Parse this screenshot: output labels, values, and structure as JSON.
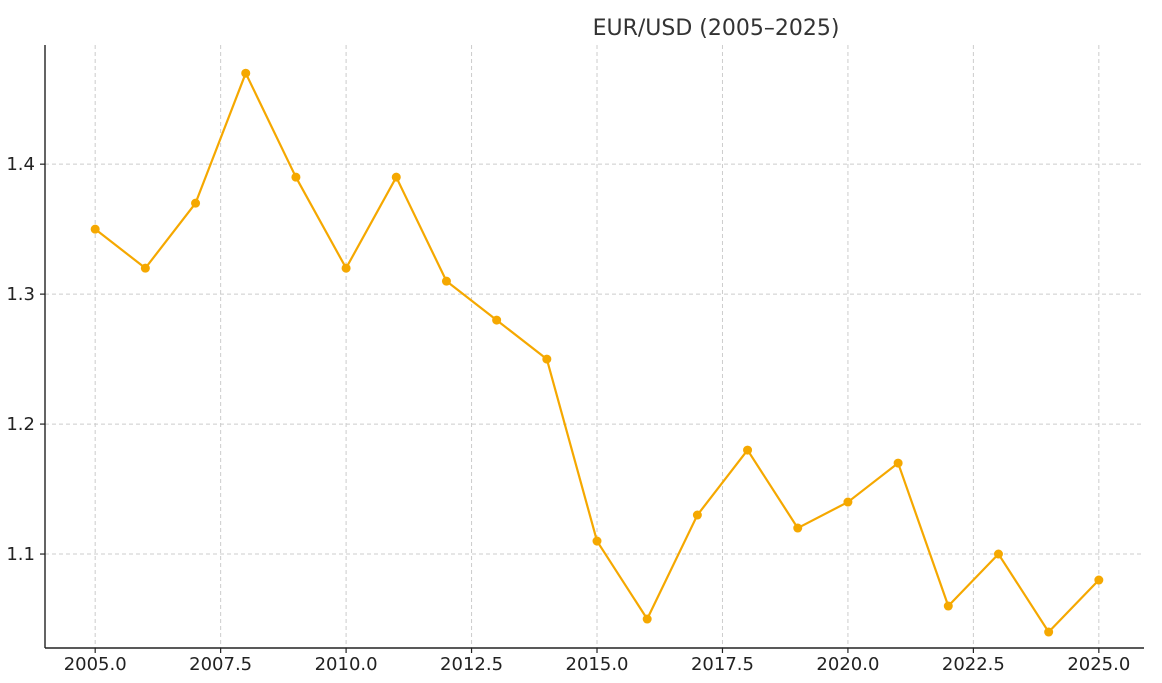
{
  "chart_data": {
    "type": "line",
    "title": "EUR/USD (2005–2025)",
    "xlabel": "",
    "ylabel": "",
    "xlim": [
      2004,
      2025.9
    ],
    "ylim": [
      1.0277,
      1.4917
    ],
    "x_ticks": [
      2005.0,
      2007.5,
      2010.0,
      2012.5,
      2015.0,
      2017.5,
      2020.0,
      2022.5,
      2025.0
    ],
    "x_tick_labels": [
      "2005.0",
      "2007.5",
      "2010.0",
      "2012.5",
      "2015.0",
      "2017.5",
      "2020.0",
      "2022.5",
      "2025.0"
    ],
    "y_ticks": [
      1.1,
      1.2,
      1.3,
      1.4
    ],
    "y_tick_labels": [
      "1.1",
      "1.2",
      "1.3",
      "1.4"
    ],
    "grid": true,
    "color": "#f5a800",
    "series": [
      {
        "x": [
          2005,
          2006,
          2007,
          2008,
          2009,
          2010,
          2011,
          2012,
          2013,
          2014,
          2015,
          2016,
          2017,
          2018,
          2019,
          2020,
          2021,
          2022,
          2023,
          2024,
          2025
        ],
        "y": [
          1.35,
          1.32,
          1.37,
          1.47,
          1.39,
          1.32,
          1.39,
          1.31,
          1.28,
          1.25,
          1.11,
          1.05,
          1.13,
          1.18,
          1.12,
          1.14,
          1.17,
          1.06,
          1.1,
          1.04,
          1.08
        ]
      }
    ]
  }
}
